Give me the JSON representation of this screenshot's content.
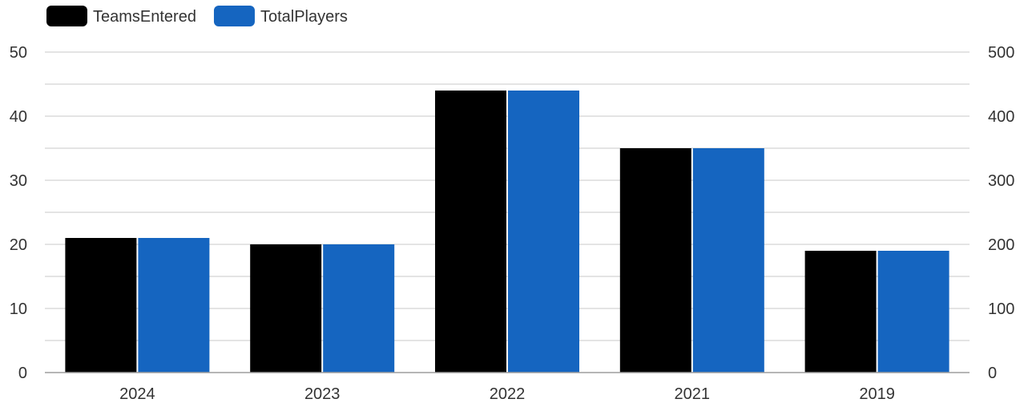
{
  "chart_data": {
    "type": "bar",
    "categories": [
      "2024",
      "2023",
      "2022",
      "2021",
      "2019"
    ],
    "series": [
      {
        "name": "TeamsEntered",
        "axis": "left",
        "color": "#000000",
        "values": [
          21,
          20,
          44,
          35,
          19
        ]
      },
      {
        "name": "TotalPlayers",
        "axis": "right",
        "color": "#1565c0",
        "values": [
          210,
          200,
          440,
          350,
          190
        ]
      }
    ],
    "y_left": {
      "ylim": [
        0,
        50
      ],
      "ticks": [
        "0",
        "10",
        "20",
        "30",
        "40",
        "50"
      ]
    },
    "y_right": {
      "ylim": [
        0,
        500
      ],
      "ticks": [
        "0",
        "100",
        "200",
        "300",
        "400",
        "500"
      ]
    },
    "grid": true,
    "legend": "top-left",
    "title": "",
    "xlabel": "",
    "ylabel": ""
  }
}
